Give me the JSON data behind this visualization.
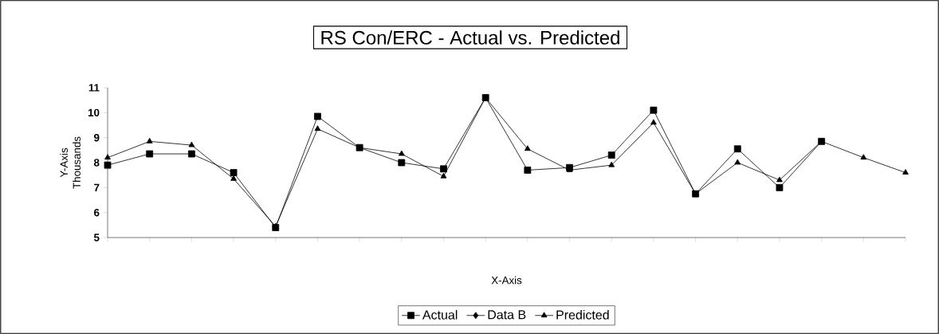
{
  "chart_data": {
    "type": "line",
    "title": "RS Con/ERC - Actual vs. Predicted",
    "xlabel": "X-Axis",
    "ylabel": "Y-Axis",
    "annotations": [
      "Thousands"
    ],
    "categories": [
      null,
      null,
      null,
      null,
      null,
      null,
      null,
      null,
      null,
      null,
      null,
      null,
      null,
      null,
      null,
      null,
      null,
      null,
      null,
      null
    ],
    "ylim": [
      5,
      11
    ],
    "yticks": [
      5,
      6,
      7,
      8,
      9,
      10,
      11
    ],
    "grid": false,
    "legend": "bottom",
    "line_style": "solid",
    "series": [
      {
        "name": "Actual",
        "color": "#000000",
        "marker": "square",
        "values": [
          7.9,
          8.35,
          8.35,
          7.6,
          5.4,
          9.85,
          8.6,
          8.0,
          7.75,
          10.6,
          7.7,
          7.8,
          8.3,
          10.1,
          6.75,
          8.55,
          7.0,
          8.85,
          null,
          null
        ]
      },
      {
        "name": "Data B",
        "color": "#000000",
        "marker": "diamond",
        "values": [
          null,
          null,
          null,
          null,
          null,
          null,
          null,
          null,
          null,
          null,
          null,
          null,
          null,
          null,
          null,
          null,
          null,
          null,
          null,
          null
        ]
      },
      {
        "name": "Predicted",
        "color": "#000000",
        "marker": "triangle",
        "values": [
          8.2,
          8.85,
          8.7,
          7.35,
          5.45,
          9.35,
          8.6,
          8.35,
          7.45,
          10.6,
          8.55,
          7.7,
          7.9,
          9.6,
          6.75,
          8.0,
          7.3,
          8.85,
          8.2,
          7.6
        ]
      }
    ]
  }
}
